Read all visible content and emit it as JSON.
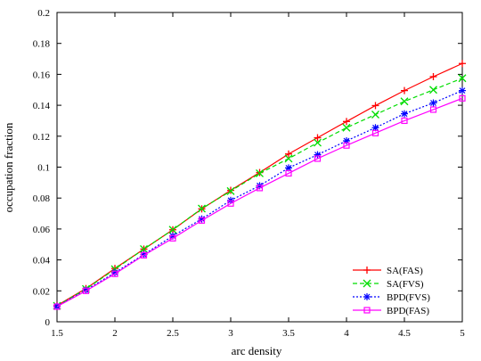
{
  "chart_data": {
    "type": "line",
    "title": "",
    "xlabel": "arc density",
    "ylabel": "occupation fraction",
    "xlim": [
      1.5,
      5
    ],
    "ylim": [
      0,
      0.2
    ],
    "xticks": [
      "1.5",
      "2",
      "2.5",
      "3",
      "3.5",
      "4",
      "4.5",
      "5"
    ],
    "yticks": [
      "0",
      "0.02",
      "0.04",
      "0.06",
      "0.08",
      "0.1",
      "0.12",
      "0.14",
      "0.16",
      "0.18",
      "0.2"
    ],
    "grid": false,
    "legend_position": "bottom-right",
    "x": [
      1.5,
      1.75,
      2.0,
      2.25,
      2.5,
      2.75,
      3.0,
      3.25,
      3.5,
      3.75,
      4.0,
      4.25,
      4.5,
      4.75,
      5.0
    ],
    "series": [
      {
        "name": "SA(FAS)",
        "color": "#ff0000",
        "marker": "plus",
        "line": "solid",
        "values": [
          0.0105,
          0.0215,
          0.0345,
          0.047,
          0.0595,
          0.073,
          0.085,
          0.0965,
          0.1085,
          0.119,
          0.1295,
          0.1398,
          0.1495,
          0.1585,
          0.167
        ]
      },
      {
        "name": "SA(FVS)",
        "color": "#00dd00",
        "marker": "x",
        "line": "dashed",
        "values": [
          0.0103,
          0.0212,
          0.034,
          0.047,
          0.0595,
          0.0732,
          0.0845,
          0.096,
          0.1055,
          0.1158,
          0.1255,
          0.134,
          0.1425,
          0.15,
          0.1575
        ]
      },
      {
        "name": "BPD(FVS)",
        "color": "#0000ff",
        "marker": "star",
        "line": "dotted",
        "values": [
          0.01,
          0.0205,
          0.0318,
          0.0435,
          0.0555,
          0.0665,
          0.0785,
          0.088,
          0.0995,
          0.108,
          0.117,
          0.1255,
          0.1345,
          0.1415,
          0.1495
        ]
      },
      {
        "name": "BPD(FAS)",
        "color": "#ff00ff",
        "marker": "square",
        "line": "solid",
        "values": [
          0.0098,
          0.02,
          0.031,
          0.043,
          0.054,
          0.0655,
          0.0765,
          0.0865,
          0.096,
          0.1055,
          0.114,
          0.122,
          0.13,
          0.1372,
          0.1445
        ]
      }
    ]
  }
}
